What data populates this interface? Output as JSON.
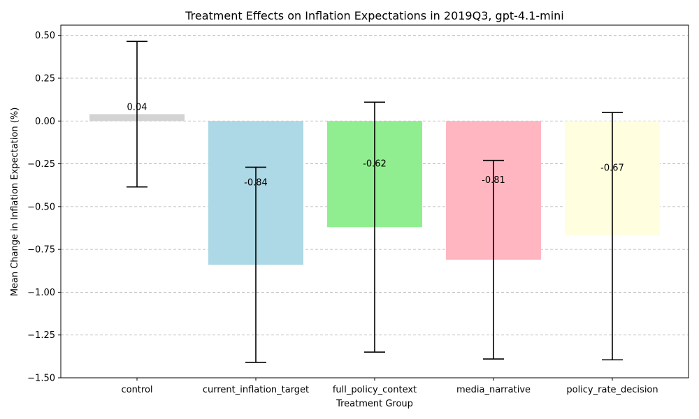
{
  "chart_data": {
    "type": "bar",
    "title": "Treatment Effects on Inflation Expectations in 2019Q3, gpt-4.1-mini",
    "xlabel": "Treatment Group",
    "ylabel": "Mean Change in Inflation Expectation (%)",
    "categories": [
      "control",
      "current_inflation_target",
      "full_policy_context",
      "media_narrative",
      "policy_rate_decision"
    ],
    "values": [
      0.04,
      -0.84,
      -0.62,
      -0.81,
      -0.67
    ],
    "value_labels": [
      "0.04",
      "-0.84",
      "-0.62",
      "-0.81",
      "-0.67"
    ],
    "error_low": [
      -0.385,
      -1.41,
      -1.35,
      -1.39,
      -1.395
    ],
    "error_high": [
      0.465,
      -0.27,
      0.11,
      -0.23,
      0.05
    ],
    "colors": [
      "#d3d3d3",
      "#add8e6",
      "#90ee90",
      "#ffb6c1",
      "#ffffe0"
    ],
    "ylim": [
      -1.5,
      0.56
    ],
    "yticks": [
      0.5,
      0.25,
      0.0,
      -0.25,
      -0.5,
      -0.75,
      -1.0,
      -1.25,
      -1.5
    ],
    "ytick_labels": [
      "0.50",
      "0.25",
      "0.00",
      "−0.25",
      "−0.50",
      "−0.75",
      "−1.00",
      "−1.25",
      "−1.50"
    ],
    "grid": "y-dashed",
    "legend": "none"
  }
}
